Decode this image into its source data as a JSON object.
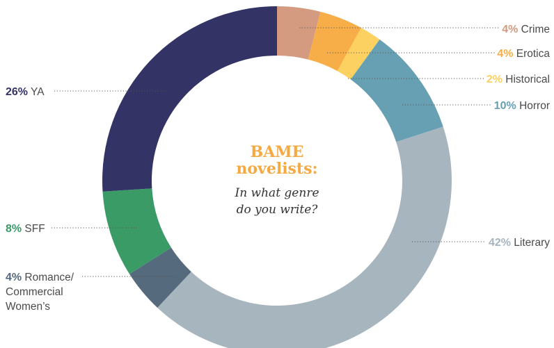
{
  "chart_data": {
    "type": "pie",
    "variant": "donut",
    "title_line1": "BAME",
    "title_line2": "novelists:",
    "subtitle_line1": "In what genre",
    "subtitle_line2": "do you write?",
    "unit": "%",
    "slices": [
      {
        "label": "Crime",
        "value": 4,
        "color": "#d49b80"
      },
      {
        "label": "Erotica",
        "value": 4,
        "color": "#f8ae48"
      },
      {
        "label": "Historical",
        "value": 2,
        "color": "#fdd062"
      },
      {
        "label": "Horror",
        "value": 10,
        "color": "#67a0b2"
      },
      {
        "label": "Literary",
        "value": 42,
        "color": "#a7b5bf"
      },
      {
        "label": "Romance/ Commercial Women’s",
        "label_lines": [
          "Romance/",
          "Commercial",
          "Women’s"
        ],
        "value": 4,
        "color": "#566a7d"
      },
      {
        "label": "SFF",
        "value": 8,
        "color": "#3a9b67"
      },
      {
        "label": "YA",
        "value": 26,
        "color": "#333366"
      }
    ]
  }
}
